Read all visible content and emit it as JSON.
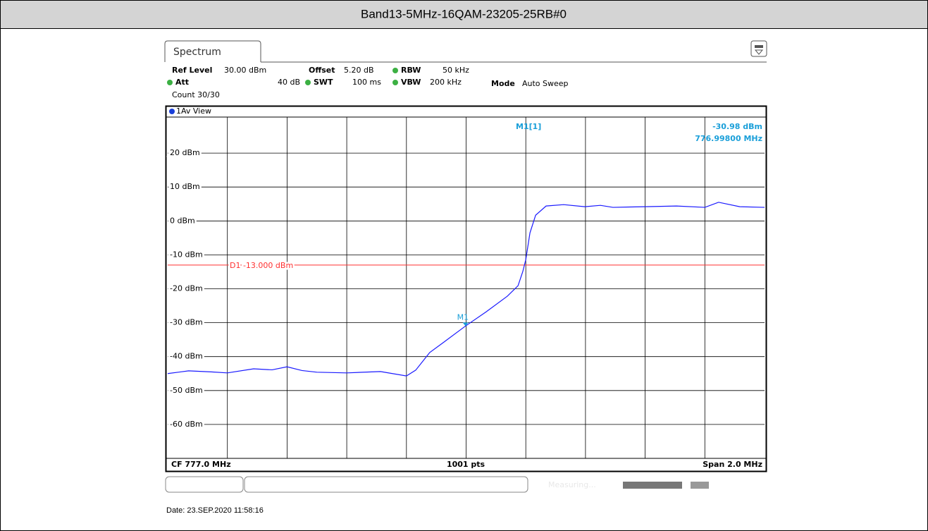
{
  "header": {
    "title": "Band13-5MHz-16QAM-23205-25RB#0"
  },
  "instrument": {
    "tab": "Spectrum",
    "settings": {
      "ref_level_label": "Ref Level",
      "ref_level": "30.00 dBm",
      "offset_label": "Offset",
      "offset": "5.20 dB",
      "rbw_label": "RBW",
      "rbw": "50 kHz",
      "att_label": "Att",
      "att": "40 dB",
      "swt_label": "SWT",
      "swt": "100 ms",
      "vbw_label": "VBW",
      "vbw": "200 kHz",
      "mode_label": "Mode",
      "mode": "Auto Sweep",
      "count": "Count 30/30"
    },
    "view": "1Av View",
    "footer": {
      "center_freq": "CF 777.0 MHz",
      "points": "1001 pts",
      "span": "Span 2.0 MHz"
    },
    "status": "Measuring..."
  },
  "chart_data": {
    "type": "line",
    "xlim": [
      776.0,
      778.0
    ],
    "xticks": [
      776.2,
      776.4,
      776.6,
      776.8,
      777.0,
      777.2,
      777.4,
      777.6,
      777.8
    ],
    "ylim": [
      -70,
      30
    ],
    "yticks": [
      {
        "value": 20,
        "label": "20 dBm"
      },
      {
        "value": 10,
        "label": "10 dBm"
      },
      {
        "value": 0,
        "label": "0 dBm"
      },
      {
        "value": -10,
        "label": "-10 dBm"
      },
      {
        "value": -20,
        "label": "-20 dBm"
      },
      {
        "value": -30,
        "label": "-30 dBm"
      },
      {
        "value": -40,
        "label": "-40 dBm"
      },
      {
        "value": -50,
        "label": "-50 dBm"
      },
      {
        "value": -60,
        "label": "-60 dBm"
      }
    ],
    "grid": true,
    "series": [
      {
        "color": "#1a1aff",
        "x": [
          776.0,
          776.07,
          776.146,
          776.2,
          776.288,
          776.35,
          776.4,
          776.45,
          776.5,
          776.6,
          776.713,
          776.8,
          776.831,
          776.878,
          776.926,
          776.998,
          777.067,
          777.138,
          777.174,
          777.19,
          777.2,
          777.214,
          777.233,
          777.268,
          777.327,
          777.398,
          777.45,
          777.492,
          777.599,
          777.705,
          777.8,
          777.846,
          777.917,
          778.0
        ],
        "values": [
          -45.0,
          -44.2,
          -44.5,
          -44.8,
          -43.6,
          -43.9,
          -43.0,
          -44.1,
          -44.6,
          -44.8,
          -44.4,
          -45.7,
          -44.0,
          -38.8,
          -35.7,
          -30.98,
          -26.8,
          -22.2,
          -19.1,
          -14.9,
          -11.4,
          -3.5,
          1.7,
          4.4,
          4.8,
          4.2,
          4.6,
          4.0,
          4.2,
          4.4,
          4.0,
          5.5,
          4.2,
          4.0
        ]
      }
    ],
    "display_line": {
      "value": -13,
      "label": "D1 -13.000 dBm",
      "color": "#ff3030"
    },
    "marker": {
      "name": "M1",
      "readout": "M1[1]",
      "x": 776.998,
      "x_label": "776.99800 MHz",
      "y": -30.98,
      "y_label": "-30.98 dBm",
      "color": "#1a9fd9"
    }
  },
  "date": "Date: 23.SEP.2020  11:58:16"
}
